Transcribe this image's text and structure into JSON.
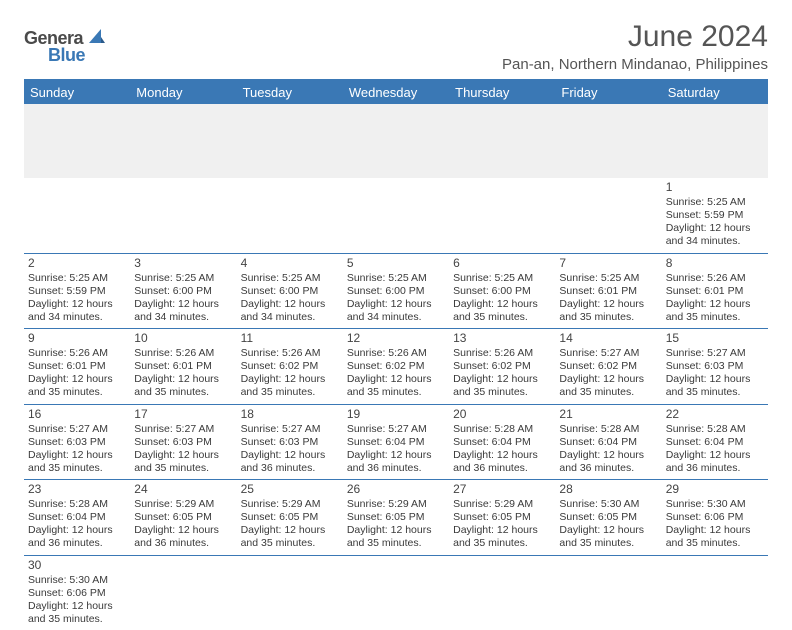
{
  "brand": {
    "part1": "Genera",
    "part2": "Blue",
    "accent": "#3a78b5",
    "text_color": "#4a4a4a"
  },
  "title": "June 2024",
  "location": "Pan-an, Northern Mindanao, Philippines",
  "colors": {
    "header_bg": "#3a78b5",
    "header_fg": "#ffffff",
    "rule": "#3a78b5",
    "blank_bg": "#f0f0f0",
    "body_text": "#3a3a3a",
    "page_bg": "#ffffff"
  },
  "typography": {
    "title_fontsize_pt": 22,
    "location_fontsize_pt": 11,
    "day_header_fontsize_pt": 10,
    "cell_fontsize_pt": 8
  },
  "day_headers": [
    "Sunday",
    "Monday",
    "Tuesday",
    "Wednesday",
    "Thursday",
    "Friday",
    "Saturday"
  ],
  "layout": {
    "columns": 7,
    "rows_visible": 6,
    "first_row_is_blank_prefix": true
  },
  "weeks": [
    [
      null,
      null,
      null,
      null,
      null,
      null,
      {
        "day": "1",
        "sunrise": "Sunrise: 5:25 AM",
        "sunset": "Sunset: 5:59 PM",
        "daylight": "Daylight: 12 hours and 34 minutes."
      }
    ],
    [
      {
        "day": "2",
        "sunrise": "Sunrise: 5:25 AM",
        "sunset": "Sunset: 5:59 PM",
        "daylight": "Daylight: 12 hours and 34 minutes."
      },
      {
        "day": "3",
        "sunrise": "Sunrise: 5:25 AM",
        "sunset": "Sunset: 6:00 PM",
        "daylight": "Daylight: 12 hours and 34 minutes."
      },
      {
        "day": "4",
        "sunrise": "Sunrise: 5:25 AM",
        "sunset": "Sunset: 6:00 PM",
        "daylight": "Daylight: 12 hours and 34 minutes."
      },
      {
        "day": "5",
        "sunrise": "Sunrise: 5:25 AM",
        "sunset": "Sunset: 6:00 PM",
        "daylight": "Daylight: 12 hours and 34 minutes."
      },
      {
        "day": "6",
        "sunrise": "Sunrise: 5:25 AM",
        "sunset": "Sunset: 6:00 PM",
        "daylight": "Daylight: 12 hours and 35 minutes."
      },
      {
        "day": "7",
        "sunrise": "Sunrise: 5:25 AM",
        "sunset": "Sunset: 6:01 PM",
        "daylight": "Daylight: 12 hours and 35 minutes."
      },
      {
        "day": "8",
        "sunrise": "Sunrise: 5:26 AM",
        "sunset": "Sunset: 6:01 PM",
        "daylight": "Daylight: 12 hours and 35 minutes."
      }
    ],
    [
      {
        "day": "9",
        "sunrise": "Sunrise: 5:26 AM",
        "sunset": "Sunset: 6:01 PM",
        "daylight": "Daylight: 12 hours and 35 minutes."
      },
      {
        "day": "10",
        "sunrise": "Sunrise: 5:26 AM",
        "sunset": "Sunset: 6:01 PM",
        "daylight": "Daylight: 12 hours and 35 minutes."
      },
      {
        "day": "11",
        "sunrise": "Sunrise: 5:26 AM",
        "sunset": "Sunset: 6:02 PM",
        "daylight": "Daylight: 12 hours and 35 minutes."
      },
      {
        "day": "12",
        "sunrise": "Sunrise: 5:26 AM",
        "sunset": "Sunset: 6:02 PM",
        "daylight": "Daylight: 12 hours and 35 minutes."
      },
      {
        "day": "13",
        "sunrise": "Sunrise: 5:26 AM",
        "sunset": "Sunset: 6:02 PM",
        "daylight": "Daylight: 12 hours and 35 minutes."
      },
      {
        "day": "14",
        "sunrise": "Sunrise: 5:27 AM",
        "sunset": "Sunset: 6:02 PM",
        "daylight": "Daylight: 12 hours and 35 minutes."
      },
      {
        "day": "15",
        "sunrise": "Sunrise: 5:27 AM",
        "sunset": "Sunset: 6:03 PM",
        "daylight": "Daylight: 12 hours and 35 minutes."
      }
    ],
    [
      {
        "day": "16",
        "sunrise": "Sunrise: 5:27 AM",
        "sunset": "Sunset: 6:03 PM",
        "daylight": "Daylight: 12 hours and 35 minutes."
      },
      {
        "day": "17",
        "sunrise": "Sunrise: 5:27 AM",
        "sunset": "Sunset: 6:03 PM",
        "daylight": "Daylight: 12 hours and 35 minutes."
      },
      {
        "day": "18",
        "sunrise": "Sunrise: 5:27 AM",
        "sunset": "Sunset: 6:03 PM",
        "daylight": "Daylight: 12 hours and 36 minutes."
      },
      {
        "day": "19",
        "sunrise": "Sunrise: 5:27 AM",
        "sunset": "Sunset: 6:04 PM",
        "daylight": "Daylight: 12 hours and 36 minutes."
      },
      {
        "day": "20",
        "sunrise": "Sunrise: 5:28 AM",
        "sunset": "Sunset: 6:04 PM",
        "daylight": "Daylight: 12 hours and 36 minutes."
      },
      {
        "day": "21",
        "sunrise": "Sunrise: 5:28 AM",
        "sunset": "Sunset: 6:04 PM",
        "daylight": "Daylight: 12 hours and 36 minutes."
      },
      {
        "day": "22",
        "sunrise": "Sunrise: 5:28 AM",
        "sunset": "Sunset: 6:04 PM",
        "daylight": "Daylight: 12 hours and 36 minutes."
      }
    ],
    [
      {
        "day": "23",
        "sunrise": "Sunrise: 5:28 AM",
        "sunset": "Sunset: 6:04 PM",
        "daylight": "Daylight: 12 hours and 36 minutes."
      },
      {
        "day": "24",
        "sunrise": "Sunrise: 5:29 AM",
        "sunset": "Sunset: 6:05 PM",
        "daylight": "Daylight: 12 hours and 36 minutes."
      },
      {
        "day": "25",
        "sunrise": "Sunrise: 5:29 AM",
        "sunset": "Sunset: 6:05 PM",
        "daylight": "Daylight: 12 hours and 35 minutes."
      },
      {
        "day": "26",
        "sunrise": "Sunrise: 5:29 AM",
        "sunset": "Sunset: 6:05 PM",
        "daylight": "Daylight: 12 hours and 35 minutes."
      },
      {
        "day": "27",
        "sunrise": "Sunrise: 5:29 AM",
        "sunset": "Sunset: 6:05 PM",
        "daylight": "Daylight: 12 hours and 35 minutes."
      },
      {
        "day": "28",
        "sunrise": "Sunrise: 5:30 AM",
        "sunset": "Sunset: 6:05 PM",
        "daylight": "Daylight: 12 hours and 35 minutes."
      },
      {
        "day": "29",
        "sunrise": "Sunrise: 5:30 AM",
        "sunset": "Sunset: 6:06 PM",
        "daylight": "Daylight: 12 hours and 35 minutes."
      }
    ],
    [
      {
        "day": "30",
        "sunrise": "Sunrise: 5:30 AM",
        "sunset": "Sunset: 6:06 PM",
        "daylight": "Daylight: 12 hours and 35 minutes."
      },
      null,
      null,
      null,
      null,
      null,
      null
    ]
  ]
}
